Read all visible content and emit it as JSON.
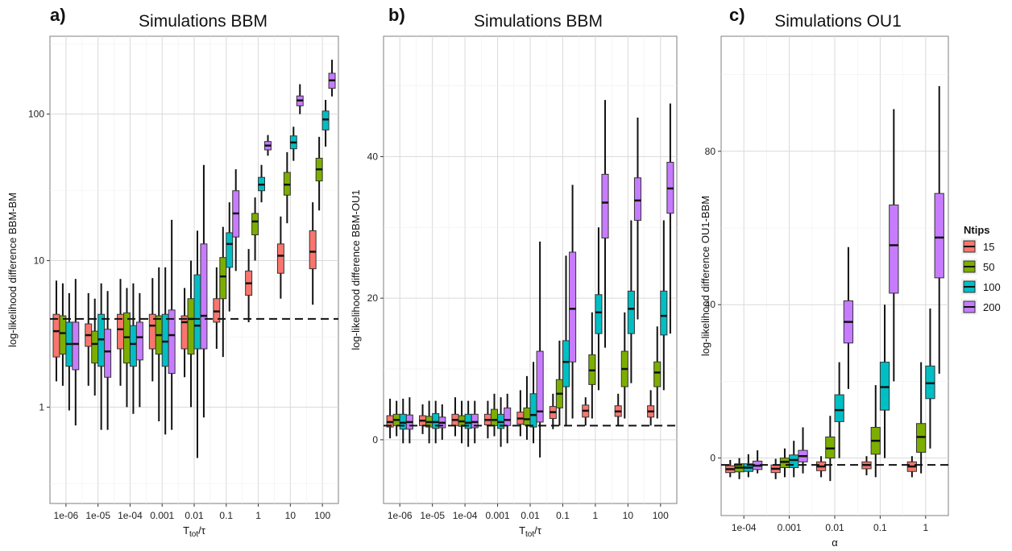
{
  "chart_data": [
    {
      "id": "a",
      "type": "box",
      "letter": "a)",
      "title": "Simulations BBM",
      "ylabel": "log-likelihood difference BBM-BM",
      "xlabel_main": "T",
      "xlabel_sub": "tot",
      "xlabel_tail": "/τ",
      "yscale": "log",
      "ylim": [
        0.22,
        340
      ],
      "yticks": [
        1,
        10,
        100
      ],
      "ytick_labels": [
        "1",
        "10",
        "100"
      ],
      "categories": [
        "1e-06",
        "1e-05",
        "1e-04",
        "0.001",
        "0.01",
        "0.1",
        "1",
        "10",
        "100"
      ],
      "reference_line": 4,
      "series": [
        {
          "name": "15",
          "boxes": [
            {
              "wl": 1.5,
              "q1": 2.2,
              "med": 3.3,
              "q3": 4.3,
              "wh": 7.3
            },
            {
              "wl": 1.4,
              "q1": 2.6,
              "med": 3.1,
              "q3": 3.7,
              "wh": 6.0
            },
            {
              "wl": 1.4,
              "q1": 2.5,
              "med": 3.4,
              "q3": 4.3,
              "wh": 7.5
            },
            {
              "wl": 1.5,
              "q1": 2.5,
              "med": 3.6,
              "q3": 4.3,
              "wh": 7.6
            },
            {
              "wl": 1.6,
              "q1": 2.5,
              "med": 3.8,
              "q3": 4.2,
              "wh": 6.5
            },
            {
              "wl": 2.5,
              "q1": 3.8,
              "med": 4.5,
              "q3": 5.5,
              "wh": 9.0
            },
            {
              "wl": 3.8,
              "q1": 5.8,
              "med": 7.0,
              "q3": 8.5,
              "wh": 12.0
            },
            {
              "wl": 5.5,
              "q1": 8.2,
              "med": 10.8,
              "q3": 13.0,
              "wh": 20.0
            },
            {
              "wl": 5.0,
              "q1": 8.8,
              "med": 11.5,
              "q3": 16.0,
              "wh": 25.0
            }
          ]
        },
        {
          "name": "50",
          "boxes": [
            {
              "wl": 1.4,
              "q1": 2.3,
              "med": 3.2,
              "q3": 4.2,
              "wh": 7.0
            },
            {
              "wl": 1.2,
              "q1": 2.0,
              "med": 2.7,
              "q3": 3.3,
              "wh": 5.5
            },
            {
              "wl": 1.0,
              "q1": 2.0,
              "med": 3.0,
              "q3": 4.4,
              "wh": 6.5
            },
            {
              "wl": 0.8,
              "q1": 2.3,
              "med": 3.1,
              "q3": 4.2,
              "wh": 9.0
            },
            {
              "wl": 1.0,
              "q1": 2.3,
              "med": 4.0,
              "q3": 5.5,
              "wh": 10.0
            },
            {
              "wl": 2.2,
              "q1": 5.5,
              "med": 7.8,
              "q3": 10.5,
              "wh": 17.0
            },
            {
              "wl": 10.0,
              "q1": 15.0,
              "med": 18.5,
              "q3": 21.0,
              "wh": 27.0
            },
            {
              "wl": 18.0,
              "q1": 28.0,
              "med": 33.0,
              "q3": 40.0,
              "wh": 55.0
            },
            {
              "wl": 22.0,
              "q1": 35.0,
              "med": 42.0,
              "q3": 50.0,
              "wh": 70.0
            }
          ]
        },
        {
          "name": "100",
          "boxes": [
            {
              "wl": 0.95,
              "q1": 1.9,
              "med": 2.7,
              "q3": 3.8,
              "wh": 6.0
            },
            {
              "wl": 0.7,
              "q1": 1.9,
              "med": 2.9,
              "q3": 4.3,
              "wh": 7.0
            },
            {
              "wl": 0.9,
              "q1": 1.9,
              "med": 2.7,
              "q3": 3.6,
              "wh": 7.0
            },
            {
              "wl": 0.65,
              "q1": 1.9,
              "med": 2.8,
              "q3": 4.3,
              "wh": 9.0
            },
            {
              "wl": 0.45,
              "q1": 2.5,
              "med": 3.6,
              "q3": 8.0,
              "wh": 16.0
            },
            {
              "wl": 4.5,
              "q1": 9.0,
              "med": 13.0,
              "q3": 15.5,
              "wh": 25.0
            },
            {
              "wl": 25.0,
              "q1": 30.0,
              "med": 33.0,
              "q3": 37.0,
              "wh": 45.0
            },
            {
              "wl": 48.0,
              "q1": 58.0,
              "med": 64.0,
              "q3": 71.0,
              "wh": 82.0
            },
            {
              "wl": 60.0,
              "q1": 78.0,
              "med": 92.0,
              "q3": 105.0,
              "wh": 125.0
            }
          ]
        },
        {
          "name": "200",
          "boxes": [
            {
              "wl": 0.75,
              "q1": 1.8,
              "med": 2.7,
              "q3": 3.8,
              "wh": 7.5
            },
            {
              "wl": 0.7,
              "q1": 1.6,
              "med": 2.4,
              "q3": 3.4,
              "wh": 6.2
            },
            {
              "wl": 1.0,
              "q1": 2.1,
              "med": 3.0,
              "q3": 3.8,
              "wh": 6.0
            },
            {
              "wl": 0.7,
              "q1": 1.7,
              "med": 3.1,
              "q3": 4.6,
              "wh": 19.0
            },
            {
              "wl": 0.85,
              "q1": 2.5,
              "med": 4.2,
              "q3": 13.0,
              "wh": 45.0
            },
            {
              "wl": 8.5,
              "q1": 14.5,
              "med": 21.0,
              "q3": 30.0,
              "wh": 42.0
            },
            {
              "wl": 52.0,
              "q1": 57.0,
              "med": 61.0,
              "q3": 65.0,
              "wh": 72.0
            },
            {
              "wl": 100.0,
              "q1": 114.0,
              "med": 124.0,
              "q3": 133.0,
              "wh": 160.0
            },
            {
              "wl": 132.0,
              "q1": 150.0,
              "med": 170.0,
              "q3": 190.0,
              "wh": 235.0
            }
          ]
        }
      ]
    },
    {
      "id": "b",
      "type": "box",
      "letter": "b)",
      "title": "Simulations BBM",
      "ylabel": "log-likelihood difference BBM-OU1",
      "xlabel_main": "T",
      "xlabel_sub": "tot",
      "xlabel_tail": "/τ",
      "yscale": "linear",
      "ylim": [
        -9,
        57
      ],
      "yticks": [
        0,
        20,
        40
      ],
      "ytick_labels": [
        "0",
        "20",
        "40"
      ],
      "categories": [
        "1e-06",
        "1e-05",
        "1e-04",
        "0.001",
        "0.01",
        "0.1",
        "1",
        "10",
        "100"
      ],
      "reference_line": 2,
      "series": [
        {
          "name": "15",
          "boxes": [
            {
              "wl": 0.2,
              "q1": 1.8,
              "med": 2.5,
              "q3": 3.4,
              "wh": 5.8
            },
            {
              "wl": 0.8,
              "q1": 2.0,
              "med": 2.7,
              "q3": 3.4,
              "wh": 5.0
            },
            {
              "wl": 0.5,
              "q1": 2.0,
              "med": 2.8,
              "q3": 3.6,
              "wh": 6.0
            },
            {
              "wl": 0.2,
              "q1": 2.1,
              "med": 2.8,
              "q3": 3.6,
              "wh": 5.5
            },
            {
              "wl": 0.5,
              "q1": 2.2,
              "med": 3.0,
              "q3": 3.9,
              "wh": 7.0
            },
            {
              "wl": 1.5,
              "q1": 3.0,
              "med": 3.9,
              "q3": 4.7,
              "wh": 6.5
            },
            {
              "wl": 2.0,
              "q1": 3.2,
              "med": 4.1,
              "q3": 4.9,
              "wh": 6.0
            },
            {
              "wl": 2.0,
              "q1": 3.3,
              "med": 4.0,
              "q3": 4.8,
              "wh": 6.5
            },
            {
              "wl": 2.0,
              "q1": 3.2,
              "med": 4.0,
              "q3": 4.8,
              "wh": 7.0
            }
          ]
        },
        {
          "name": "50",
          "boxes": [
            {
              "wl": 0.5,
              "q1": 2.0,
              "med": 2.8,
              "q3": 3.6,
              "wh": 5.5
            },
            {
              "wl": -0.5,
              "q1": 1.8,
              "med": 2.5,
              "q3": 3.3,
              "wh": 5.5
            },
            {
              "wl": -0.5,
              "q1": 1.9,
              "med": 2.6,
              "q3": 3.4,
              "wh": 5.5
            },
            {
              "wl": 0.5,
              "q1": 2.0,
              "med": 2.8,
              "q3": 4.3,
              "wh": 6.5
            },
            {
              "wl": 0.0,
              "q1": 2.1,
              "med": 2.9,
              "q3": 4.5,
              "wh": 9.0
            },
            {
              "wl": 2.0,
              "q1": 4.5,
              "med": 6.5,
              "q3": 8.5,
              "wh": 14.0
            },
            {
              "wl": 3.0,
              "q1": 7.8,
              "med": 9.8,
              "q3": 12.0,
              "wh": 18.0
            },
            {
              "wl": 3.0,
              "q1": 7.5,
              "med": 10.0,
              "q3": 12.5,
              "wh": 18.0
            },
            {
              "wl": 3.0,
              "q1": 7.5,
              "med": 9.5,
              "q3": 11.0,
              "wh": 16.0
            }
          ]
        },
        {
          "name": "100",
          "boxes": [
            {
              "wl": -0.5,
              "q1": 1.5,
              "med": 2.4,
              "q3": 3.6,
              "wh": 5.8
            },
            {
              "wl": -0.5,
              "q1": 1.6,
              "med": 2.5,
              "q3": 3.7,
              "wh": 5.5
            },
            {
              "wl": -1.0,
              "q1": 1.6,
              "med": 2.4,
              "q3": 3.6,
              "wh": 5.5
            },
            {
              "wl": -1.0,
              "q1": 1.6,
              "med": 2.5,
              "q3": 3.6,
              "wh": 6.0
            },
            {
              "wl": -0.5,
              "q1": 1.8,
              "med": 3.5,
              "q3": 6.5,
              "wh": 11.0
            },
            {
              "wl": 2.0,
              "q1": 7.5,
              "med": 11.0,
              "q3": 14.0,
              "wh": 26.0
            },
            {
              "wl": 7.0,
              "q1": 15.0,
              "med": 18.0,
              "q3": 20.5,
              "wh": 30.0
            },
            {
              "wl": 8.0,
              "q1": 15.0,
              "med": 18.5,
              "q3": 21.0,
              "wh": 31.0
            },
            {
              "wl": 7.0,
              "q1": 14.8,
              "med": 17.5,
              "q3": 21.0,
              "wh": 31.0
            }
          ]
        },
        {
          "name": "200",
          "boxes": [
            {
              "wl": -0.5,
              "q1": 1.5,
              "med": 2.5,
              "q3": 3.5,
              "wh": 6.0
            },
            {
              "wl": 0.0,
              "q1": 1.7,
              "med": 2.4,
              "q3": 3.2,
              "wh": 5.0
            },
            {
              "wl": -0.5,
              "q1": 1.7,
              "med": 2.5,
              "q3": 3.6,
              "wh": 5.5
            },
            {
              "wl": -0.5,
              "q1": 2.0,
              "med": 2.8,
              "q3": 4.5,
              "wh": 6.5
            },
            {
              "wl": -2.5,
              "q1": 2.5,
              "med": 4.0,
              "q3": 12.5,
              "wh": 28.0
            },
            {
              "wl": 3.0,
              "q1": 11.0,
              "med": 18.5,
              "q3": 26.5,
              "wh": 36.0
            },
            {
              "wl": 13.0,
              "q1": 28.5,
              "med": 33.5,
              "q3": 37.5,
              "wh": 48.0
            },
            {
              "wl": 17.0,
              "q1": 31.0,
              "med": 33.8,
              "q3": 37.0,
              "wh": 45.5
            },
            {
              "wl": 15.0,
              "q1": 32.0,
              "med": 35.5,
              "q3": 39.2,
              "wh": 47.5
            }
          ]
        }
      ]
    },
    {
      "id": "c",
      "type": "box",
      "letter": "c)",
      "title": "Simulations OU1",
      "ylabel": "log-likelihood difference OU1-BBM",
      "xlabel": "α",
      "yscale": "linear",
      "ylim": [
        -15,
        110
      ],
      "yticks": [
        0,
        40,
        80
      ],
      "ytick_labels": [
        "0",
        "40",
        "80"
      ],
      "categories": [
        "1e-04",
        "0.001",
        "0.01",
        "0.1",
        "1"
      ],
      "reference_line": -1.8,
      "series": [
        {
          "name": "15",
          "boxes": [
            {
              "wl": -5.0,
              "q1": -3.8,
              "med": -2.9,
              "q3": -2.0,
              "wh": -0.5
            },
            {
              "wl": -5.5,
              "q1": -3.8,
              "med": -2.8,
              "q3": -1.8,
              "wh": -0.2
            },
            {
              "wl": -5.0,
              "q1": -3.3,
              "med": -2.2,
              "q3": -1.0,
              "wh": 0.5
            },
            {
              "wl": -4.5,
              "q1": -2.8,
              "med": -1.8,
              "q3": -1.0,
              "wh": 0.5
            },
            {
              "wl": -5.0,
              "q1": -3.5,
              "med": -2.2,
              "q3": -1.0,
              "wh": 0.5
            }
          ]
        },
        {
          "name": "50",
          "boxes": [
            {
              "wl": -5.5,
              "q1": -3.6,
              "med": -2.5,
              "q3": -1.5,
              "wh": 0.0
            },
            {
              "wl": -5.0,
              "q1": -2.5,
              "med": -1.0,
              "q3": 0.0,
              "wh": 2.5
            },
            {
              "wl": -6.0,
              "q1": 0.0,
              "med": 2.5,
              "q3": 5.5,
              "wh": 11.0
            },
            {
              "wl": -5.0,
              "q1": 1.0,
              "med": 4.5,
              "q3": 8.0,
              "wh": 19.0
            },
            {
              "wl": -4.0,
              "q1": 1.5,
              "med": 5.5,
              "q3": 9.0,
              "wh": 25.0
            }
          ]
        },
        {
          "name": "100",
          "boxes": [
            {
              "wl": -5.0,
              "q1": -3.5,
              "med": -2.5,
              "q3": -1.5,
              "wh": 1.0
            },
            {
              "wl": -5.0,
              "q1": -2.5,
              "med": -0.5,
              "q3": 0.8,
              "wh": 4.5
            },
            {
              "wl": 0.0,
              "q1": 9.5,
              "med": 12.5,
              "q3": 16.5,
              "wh": 25.0
            },
            {
              "wl": 0.0,
              "q1": 12.5,
              "med": 18.5,
              "q3": 25.0,
              "wh": 40.0
            },
            {
              "wl": 2.5,
              "q1": 15.5,
              "med": 19.5,
              "q3": 24.0,
              "wh": 39.0
            }
          ]
        },
        {
          "name": "200",
          "boxes": [
            {
              "wl": -4.0,
              "q1": -3.0,
              "med": -2.0,
              "q3": -0.8,
              "wh": 2.0
            },
            {
              "wl": -4.0,
              "q1": -1.0,
              "med": 0.5,
              "q3": 2.0,
              "wh": 8.0
            },
            {
              "wl": 18.0,
              "q1": 30.0,
              "med": 35.5,
              "q3": 41.0,
              "wh": 55.0
            },
            {
              "wl": 20.0,
              "q1": 43.0,
              "med": 55.5,
              "q3": 66.0,
              "wh": 91.0
            },
            {
              "wl": 22.0,
              "q1": 47.0,
              "med": 57.5,
              "q3": 69.0,
              "wh": 97.0
            }
          ]
        }
      ]
    }
  ],
  "legend": {
    "title": "Ntips",
    "items": [
      {
        "label": "15",
        "color": "#F8766D"
      },
      {
        "label": "50",
        "color": "#7CAE00"
      },
      {
        "label": "100",
        "color": "#00BFC4"
      },
      {
        "label": "200",
        "color": "#C77CFF"
      }
    ]
  }
}
